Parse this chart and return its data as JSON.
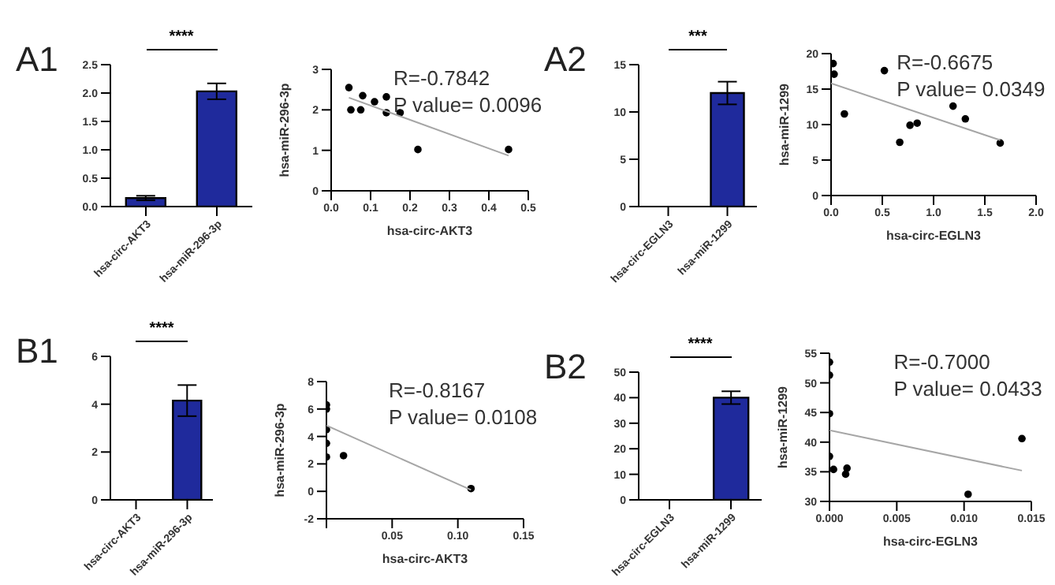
{
  "chart_data": [
    {
      "type": "bar",
      "title": "A1",
      "categories": [
        "hsa-circ-AKT3",
        "hsa-miR-296-3p"
      ],
      "values": [
        0.15,
        2.03
      ],
      "errors": [
        0.04,
        0.14
      ],
      "color": "#1f2a9c",
      "ylim": [
        0,
        2.5
      ],
      "yticks": [
        {
          "value": 0,
          "label": "0.0"
        },
        {
          "value": 0.5,
          "label": "0.5"
        },
        {
          "value": 1,
          "label": "1.0"
        },
        {
          "value": 1.5,
          "label": "1.5"
        },
        {
          "value": 2,
          "label": "2.0"
        },
        {
          "value": 2.5,
          "label": "2.5"
        }
      ],
      "annotations": [
        "****"
      ]
    },
    {
      "type": "scatter",
      "xlabel": "hsa-circ-AKT3",
      "ylabel": "hsa-miR-296-3p",
      "xlim": [
        0,
        0.5
      ],
      "xticks": [
        {
          "value": 0,
          "label": "0.0"
        },
        0.1,
        0.2,
        0.3,
        0.4,
        0.5
      ],
      "ylim": [
        0,
        3
      ],
      "yticks": [
        0,
        1,
        2,
        3
      ],
      "annotations": [
        "R=-0.7842",
        "P value= 0.0096"
      ],
      "series": [
        {
          "type": "scatter",
          "marker": "circle",
          "color": "#000000",
          "x": [
            0.045,
            0.05,
            0.075,
            0.08,
            0.11,
            0.14,
            0.14,
            0.175,
            0.22,
            0.45
          ],
          "values": [
            2.55,
            2.0,
            2.0,
            2.35,
            2.2,
            2.32,
            1.93,
            1.93,
            1.02,
            1.02
          ]
        },
        {
          "type": "line",
          "color": "#a6a6a6",
          "x": [
            0.045,
            0.45
          ],
          "values": [
            2.3,
            0.87
          ]
        }
      ]
    },
    {
      "type": "bar",
      "title": "A2",
      "categories": [
        "hsa-circ-EGLN3",
        "hsa-miR-1299"
      ],
      "values": [
        0,
        12
      ],
      "errors": [
        null,
        1.2
      ],
      "color": "#1f2a9c",
      "ylim": [
        0,
        15
      ],
      "yticks": [
        0,
        5,
        10,
        15
      ],
      "annotations": [
        "***"
      ]
    },
    {
      "type": "scatter",
      "xlabel": "hsa-circ-EGLN3",
      "ylabel": "hsa-miR-1299",
      "xlim": [
        0,
        2
      ],
      "xticks": [
        {
          "value": 0,
          "label": "0.0"
        },
        0.5,
        {
          "value": 1,
          "label": "1.0"
        },
        1.5,
        {
          "value": 2,
          "label": "2.0"
        }
      ],
      "ylim": [
        0,
        20
      ],
      "yticks": [
        0,
        5,
        10,
        15,
        20
      ],
      "annotations": [
        "R=-0.6675",
        "P value= 0.0349"
      ],
      "series": [
        {
          "type": "scatter",
          "marker": "circle",
          "color": "#000000",
          "x": [
            0.02,
            0.03,
            0.13,
            0.52,
            0.67,
            0.77,
            0.84,
            1.19,
            1.31,
            1.65
          ],
          "values": [
            18.6,
            17.1,
            11.5,
            17.6,
            7.5,
            9.9,
            10.2,
            12.6,
            10.8,
            7.4
          ]
        },
        {
          "type": "line",
          "color": "#a6a6a6",
          "x": [
            0,
            1.65
          ],
          "values": [
            15.8,
            7.8
          ]
        }
      ]
    },
    {
      "type": "bar",
      "title": "B1",
      "categories": [
        "hsa-circ-AKT3",
        "hsa-miR-296-3p"
      ],
      "values": [
        0,
        4.15
      ],
      "errors": [
        null,
        0.65
      ],
      "color": "#1f2a9c",
      "ylim": [
        0,
        6
      ],
      "yticks": [
        0,
        2,
        4,
        6
      ],
      "annotations": [
        "****"
      ]
    },
    {
      "type": "scatter",
      "xlabel": "hsa-circ-AKT3",
      "ylabel": "hsa-miR-296-3p",
      "xlim": [
        0,
        0.15
      ],
      "xticks": [
        {
          "value": 0,
          "label": null
        },
        0.05,
        {
          "value": 0.1,
          "label": "0.10"
        },
        0.15
      ],
      "ylim": [
        -2,
        8
      ],
      "yticks": [
        -2,
        0,
        2,
        4,
        6,
        8
      ],
      "annotations": [
        "R=-0.8167",
        "P value= 0.0108"
      ],
      "series": [
        {
          "type": "scatter",
          "marker": "circle",
          "color": "#000000",
          "x": [
            0,
            0,
            0,
            0,
            0,
            0.013,
            0.11
          ],
          "values": [
            6.3,
            6.0,
            4.5,
            3.5,
            2.5,
            2.6,
            0.2
          ]
        },
        {
          "type": "line",
          "color": "#a6a6a6",
          "x": [
            0,
            0.11
          ],
          "values": [
            4.8,
            0.1
          ]
        }
      ]
    },
    {
      "type": "bar",
      "title": "B2",
      "categories": [
        "hsa-circ-EGLN3",
        "hsa-miR-1299"
      ],
      "values": [
        0,
        40
      ],
      "errors": [
        null,
        2.5
      ],
      "color": "#1f2a9c",
      "ylim": [
        0,
        50
      ],
      "yticks": [
        0,
        10,
        20,
        30,
        40,
        50
      ],
      "annotations": [
        "****"
      ]
    },
    {
      "type": "scatter",
      "xlabel": "hsa-circ-EGLN3",
      "ylabel": "hsa-miR-1299",
      "xlim": [
        0,
        0.015
      ],
      "xticks": [
        {
          "value": 0,
          "label": "0.000"
        },
        0.005,
        {
          "value": 0.01,
          "label": "0.010"
        },
        0.015
      ],
      "ylim": [
        30,
        55
      ],
      "yticks": [
        30,
        35,
        40,
        45,
        50,
        55
      ],
      "annotations": [
        "R=-0.7000",
        "P value= 0.0433"
      ],
      "series": [
        {
          "type": "scatter",
          "marker": "circle",
          "color": "#000000",
          "x": [
            0,
            0,
            0,
            0,
            0.0003,
            0.0012,
            0.0013,
            0.0103,
            0.0143
          ],
          "values": [
            53.5,
            51.3,
            44.8,
            37.6,
            35.4,
            34.6,
            35.6,
            31.2,
            40.6
          ]
        },
        {
          "type": "line",
          "color": "#a6a6a6",
          "x": [
            0,
            0.0143
          ],
          "values": [
            42,
            35.2
          ]
        }
      ]
    }
  ]
}
